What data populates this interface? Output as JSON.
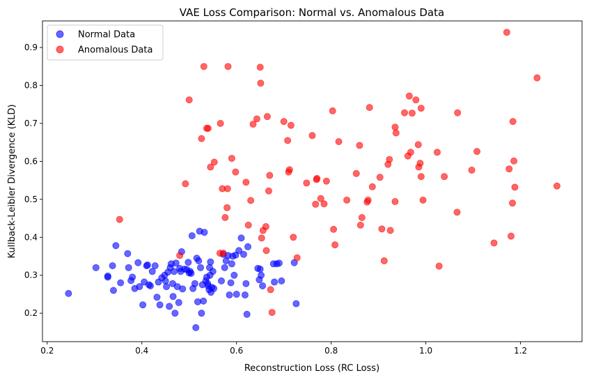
{
  "chart_data": {
    "type": "scatter",
    "title": "VAE Loss Comparison: Normal vs. Anomalous Data",
    "xlabel": "Reconstruction Loss (RC Loss)",
    "ylabel": "Kullback-Leibler Divergence (KLD)",
    "xlim": [
      0.19,
      1.33
    ],
    "ylim": [
      0.125,
      0.97
    ],
    "xticks": [
      "0.2",
      "0.4",
      "0.6",
      "0.8",
      "1.0",
      "1.2"
    ],
    "yticks": [
      "0.2",
      "0.3",
      "0.4",
      "0.5",
      "0.6",
      "0.7",
      "0.8",
      "0.9"
    ],
    "grid": false,
    "legend_position": "top-left",
    "series": [
      {
        "name": "Normal Data",
        "color": "#0000ff",
        "points": [
          [
            0.245,
            0.252
          ],
          [
            0.303,
            0.32
          ],
          [
            0.328,
            0.298
          ],
          [
            0.328,
            0.295
          ],
          [
            0.338,
            0.325
          ],
          [
            0.34,
            0.26
          ],
          [
            0.345,
            0.378
          ],
          [
            0.355,
            0.28
          ],
          [
            0.37,
            0.357
          ],
          [
            0.372,
            0.32
          ],
          [
            0.377,
            0.286
          ],
          [
            0.38,
            0.295
          ],
          [
            0.385,
            0.265
          ],
          [
            0.392,
            0.333
          ],
          [
            0.395,
            0.27
          ],
          [
            0.402,
            0.222
          ],
          [
            0.405,
            0.282
          ],
          [
            0.41,
            0.325
          ],
          [
            0.412,
            0.327
          ],
          [
            0.415,
            0.275
          ],
          [
            0.418,
            0.272
          ],
          [
            0.422,
            0.31
          ],
          [
            0.428,
            0.325
          ],
          [
            0.432,
            0.242
          ],
          [
            0.435,
            0.282
          ],
          [
            0.438,
            0.222
          ],
          [
            0.442,
            0.293
          ],
          [
            0.448,
            0.3
          ],
          [
            0.45,
            0.285
          ],
          [
            0.452,
            0.27
          ],
          [
            0.455,
            0.308
          ],
          [
            0.458,
            0.218
          ],
          [
            0.46,
            0.32
          ],
          [
            0.462,
            0.33
          ],
          [
            0.465,
            0.278
          ],
          [
            0.466,
            0.244
          ],
          [
            0.468,
            0.31
          ],
          [
            0.47,
            0.2
          ],
          [
            0.472,
            0.332
          ],
          [
            0.475,
            0.27
          ],
          [
            0.478,
            0.228
          ],
          [
            0.48,
            0.318
          ],
          [
            0.482,
            0.31
          ],
          [
            0.484,
            0.362
          ],
          [
            0.486,
            0.264
          ],
          [
            0.49,
            0.316
          ],
          [
            0.495,
            0.315
          ],
          [
            0.498,
            0.334
          ],
          [
            0.5,
            0.306
          ],
          [
            0.502,
            0.31
          ],
          [
            0.504,
            0.305
          ],
          [
            0.506,
            0.404
          ],
          [
            0.508,
            0.265
          ],
          [
            0.512,
            0.278
          ],
          [
            0.514,
            0.162
          ],
          [
            0.516,
            0.345
          ],
          [
            0.518,
            0.23
          ],
          [
            0.52,
            0.338
          ],
          [
            0.522,
            0.416
          ],
          [
            0.524,
            0.32
          ],
          [
            0.526,
            0.2
          ],
          [
            0.528,
            0.275
          ],
          [
            0.53,
            0.232
          ],
          [
            0.532,
            0.413
          ],
          [
            0.535,
            0.285
          ],
          [
            0.537,
            0.295
          ],
          [
            0.539,
            0.278
          ],
          [
            0.54,
            0.272
          ],
          [
            0.542,
            0.262
          ],
          [
            0.543,
            0.32
          ],
          [
            0.544,
            0.3
          ],
          [
            0.545,
            0.335
          ],
          [
            0.546,
            0.255
          ],
          [
            0.548,
            0.268
          ],
          [
            0.55,
            0.31
          ],
          [
            0.552,
            0.265
          ],
          [
            0.568,
            0.285
          ],
          [
            0.572,
            0.355
          ],
          [
            0.575,
            0.32
          ],
          [
            0.578,
            0.338
          ],
          [
            0.582,
            0.352
          ],
          [
            0.585,
            0.248
          ],
          [
            0.588,
            0.28
          ],
          [
            0.59,
            0.33
          ],
          [
            0.592,
            0.35
          ],
          [
            0.595,
            0.3
          ],
          [
            0.598,
            0.353
          ],
          [
            0.6,
            0.25
          ],
          [
            0.605,
            0.365
          ],
          [
            0.61,
            0.398
          ],
          [
            0.615,
            0.355
          ],
          [
            0.618,
            0.248
          ],
          [
            0.62,
            0.278
          ],
          [
            0.622,
            0.197
          ],
          [
            0.624,
            0.375
          ],
          [
            0.645,
            0.318
          ],
          [
            0.648,
            0.288
          ],
          [
            0.65,
            0.316
          ],
          [
            0.652,
            0.3
          ],
          [
            0.655,
            0.272
          ],
          [
            0.678,
            0.33
          ],
          [
            0.68,
            0.282
          ],
          [
            0.685,
            0.33
          ],
          [
            0.69,
            0.332
          ],
          [
            0.695,
            0.285
          ],
          [
            0.722,
            0.333
          ],
          [
            0.726,
            0.225
          ]
        ]
      },
      {
        "name": "Anomalous Data",
        "color": "#ff0000",
        "points": [
          [
            0.353,
            0.447
          ],
          [
            0.48,
            0.352
          ],
          [
            0.492,
            0.541
          ],
          [
            0.5,
            0.762
          ],
          [
            0.526,
            0.66
          ],
          [
            0.531,
            0.85
          ],
          [
            0.537,
            0.687
          ],
          [
            0.54,
            0.687
          ],
          [
            0.545,
            0.585
          ],
          [
            0.553,
            0.598
          ],
          [
            0.565,
            0.358
          ],
          [
            0.566,
            0.7
          ],
          [
            0.57,
            0.528
          ],
          [
            0.572,
            0.358
          ],
          [
            0.576,
            0.452
          ],
          [
            0.58,
            0.478
          ],
          [
            0.581,
            0.528
          ],
          [
            0.582,
            0.85
          ],
          [
            0.59,
            0.608
          ],
          [
            0.598,
            0.572
          ],
          [
            0.62,
            0.545
          ],
          [
            0.625,
            0.432
          ],
          [
            0.63,
            0.497
          ],
          [
            0.635,
            0.698
          ],
          [
            0.643,
            0.712
          ],
          [
            0.65,
            0.848
          ],
          [
            0.651,
            0.806
          ],
          [
            0.653,
            0.398
          ],
          [
            0.656,
            0.418
          ],
          [
            0.662,
            0.428
          ],
          [
            0.663,
            0.365
          ],
          [
            0.665,
            0.718
          ],
          [
            0.668,
            0.522
          ],
          [
            0.67,
            0.563
          ],
          [
            0.672,
            0.262
          ],
          [
            0.675,
            0.202
          ],
          [
            0.7,
            0.705
          ],
          [
            0.708,
            0.655
          ],
          [
            0.71,
            0.572
          ],
          [
            0.712,
            0.578
          ],
          [
            0.715,
            0.695
          ],
          [
            0.72,
            0.4
          ],
          [
            0.728,
            0.346
          ],
          [
            0.748,
            0.543
          ],
          [
            0.76,
            0.668
          ],
          [
            0.767,
            0.487
          ],
          [
            0.769,
            0.552
          ],
          [
            0.77,
            0.555
          ],
          [
            0.778,
            0.502
          ],
          [
            0.785,
            0.488
          ],
          [
            0.79,
            0.548
          ],
          [
            0.803,
            0.733
          ],
          [
            0.805,
            0.421
          ],
          [
            0.808,
            0.38
          ],
          [
            0.816,
            0.652
          ],
          [
            0.833,
            0.498
          ],
          [
            0.853,
            0.568
          ],
          [
            0.86,
            0.642
          ],
          [
            0.862,
            0.432
          ],
          [
            0.865,
            0.452
          ],
          [
            0.876,
            0.493
          ],
          [
            0.878,
            0.498
          ],
          [
            0.881,
            0.742
          ],
          [
            0.887,
            0.533
          ],
          [
            0.903,
            0.558
          ],
          [
            0.907,
            0.422
          ],
          [
            0.912,
            0.338
          ],
          [
            0.92,
            0.592
          ],
          [
            0.923,
            0.605
          ],
          [
            0.925,
            0.418
          ],
          [
            0.935,
            0.494
          ],
          [
            0.935,
            0.69
          ],
          [
            0.937,
            0.675
          ],
          [
            0.955,
            0.728
          ],
          [
            0.962,
            0.614
          ],
          [
            0.965,
            0.772
          ],
          [
            0.968,
            0.624
          ],
          [
            0.971,
            0.727
          ],
          [
            0.979,
            0.762
          ],
          [
            0.984,
            0.644
          ],
          [
            0.985,
            0.585
          ],
          [
            0.988,
            0.595
          ],
          [
            0.99,
            0.74
          ],
          [
            0.99,
            0.56
          ],
          [
            0.994,
            0.498
          ],
          [
            1.024,
            0.624
          ],
          [
            1.028,
            0.324
          ],
          [
            1.039,
            0.56
          ],
          [
            1.066,
            0.466
          ],
          [
            1.067,
            0.728
          ],
          [
            1.097,
            0.577
          ],
          [
            1.108,
            0.626
          ],
          [
            1.144,
            0.385
          ],
          [
            1.171,
            0.94
          ],
          [
            1.176,
            0.58
          ],
          [
            1.18,
            0.403
          ],
          [
            1.183,
            0.49
          ],
          [
            1.184,
            0.705
          ],
          [
            1.186,
            0.601
          ],
          [
            1.188,
            0.532
          ],
          [
            1.235,
            0.82
          ],
          [
            1.277,
            0.535
          ]
        ]
      }
    ]
  }
}
